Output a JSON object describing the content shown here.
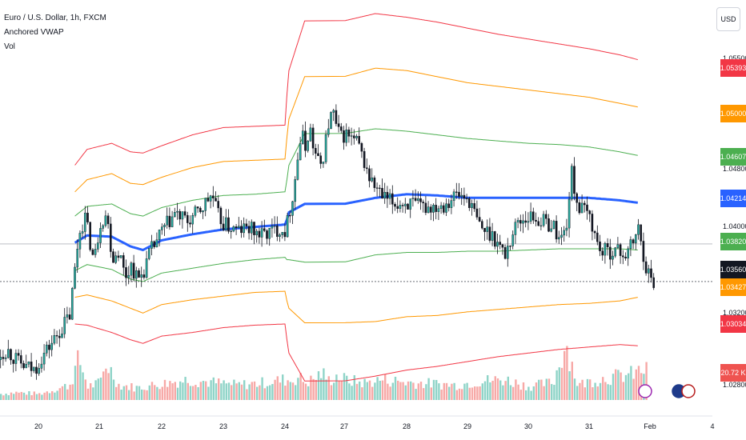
{
  "header": {
    "symbol_line": "Euro / U.S. Dollar, 1h, FXCM",
    "indicator_1": "Anchored VWAP",
    "indicator_2": "Vol"
  },
  "currency_button": "USD",
  "colors": {
    "up": "#26a69a",
    "down": "#ef5350",
    "vwap": "#2962ff",
    "band1": "#4caf50",
    "band2": "#ff9800",
    "band3": "#f23645",
    "vol_up": "#8fd4c8",
    "vol_down": "#f7a9a7"
  },
  "price_axis": {
    "ticks": [
      "1.05500",
      "1.04800",
      "1.04400",
      "1.04000",
      "1.03600",
      "1.03200",
      "1.02800"
    ],
    "tags": [
      {
        "text": "1.05393",
        "color": "#f23645"
      },
      {
        "text": "1.05000",
        "color": "#ff9800"
      },
      {
        "text": "1.04607",
        "color": "#4caf50"
      },
      {
        "text": "1.04214",
        "color": "#2962ff"
      },
      {
        "text": "1.03820",
        "color": "#4caf50"
      },
      {
        "text": "1.03560",
        "color": "#131722"
      },
      {
        "text": "1.03427",
        "color": "#ff9800"
      },
      {
        "text": "1.03034",
        "color": "#f23645"
      },
      {
        "text": "20.72 K",
        "color": "#ef5350"
      }
    ]
  },
  "time_axis": [
    "20",
    "21",
    "22",
    "23",
    "24",
    "27",
    "28",
    "29",
    "30",
    "31",
    "Feb",
    "4"
  ],
  "chart_data": {
    "type": "candlestick",
    "title": "Euro / U.S. Dollar, 1h, FXCM",
    "series_names": [
      "Anchored VWAP",
      "Vol"
    ],
    "ylim": [
      1.0255,
      1.0575
    ],
    "last_price": 1.0356,
    "vwap_series": {
      "vwap": [
        [
          20.6,
          1.0388
        ],
        [
          20.8,
          1.0394
        ],
        [
          21.2,
          1.0393
        ],
        [
          21.5,
          1.0385
        ],
        [
          21.7,
          1.0382
        ],
        [
          22,
          1.039
        ],
        [
          22.5,
          1.0395
        ],
        [
          23,
          1.0399
        ],
        [
          23.5,
          1.0401
        ],
        [
          24,
          1.0403
        ],
        [
          24.3,
          1.0407
        ],
        [
          24.6,
          1.0413
        ],
        [
          27,
          1.042
        ],
        [
          27.5,
          1.0425
        ],
        [
          28,
          1.0428
        ],
        [
          28.5,
          1.0427
        ],
        [
          29,
          1.0425
        ],
        [
          29.5,
          1.0425
        ],
        [
          30,
          1.0425
        ],
        [
          30.5,
          1.0425
        ],
        [
          31,
          1.0425
        ],
        [
          31.5,
          1.0423
        ],
        [
          31.8,
          1.0421
        ]
      ],
      "upper1": [
        [
          20.6,
          1.041
        ],
        [
          20.8,
          1.0418
        ],
        [
          21.2,
          1.042
        ],
        [
          21.5,
          1.0412
        ],
        [
          21.7,
          1.041
        ],
        [
          22,
          1.0417
        ],
        [
          22.5,
          1.0423
        ],
        [
          23,
          1.0427
        ],
        [
          23.5,
          1.0428
        ],
        [
          24,
          1.043
        ],
        [
          24.3,
          1.044
        ],
        [
          24.6,
          1.0452
        ],
        [
          27,
          1.0478
        ],
        [
          27.5,
          1.0482
        ],
        [
          28,
          1.048
        ],
        [
          28.5,
          1.0477
        ],
        [
          29,
          1.0474
        ],
        [
          29.5,
          1.0472
        ],
        [
          30,
          1.047
        ],
        [
          30.5,
          1.0469
        ],
        [
          31,
          1.0467
        ],
        [
          31.5,
          1.0463
        ],
        [
          31.8,
          1.046
        ]
      ],
      "lower1": [
        [
          20.6,
          1.0365
        ],
        [
          20.8,
          1.037
        ],
        [
          21.2,
          1.0366
        ],
        [
          21.5,
          1.0358
        ],
        [
          21.7,
          1.0356
        ],
        [
          22,
          1.0363
        ],
        [
          22.5,
          1.0367
        ],
        [
          23,
          1.0371
        ],
        [
          23.5,
          1.0374
        ],
        [
          24,
          1.0376
        ],
        [
          24.3,
          1.0374
        ],
        [
          24.6,
          1.0374
        ],
        [
          27,
          1.0372
        ],
        [
          27.5,
          1.0378
        ],
        [
          28,
          1.038
        ],
        [
          28.5,
          1.038
        ],
        [
          29,
          1.0381
        ],
        [
          29.5,
          1.0381
        ],
        [
          30,
          1.0382
        ],
        [
          30.5,
          1.0383
        ],
        [
          31,
          1.0383
        ],
        [
          31.5,
          1.0383
        ],
        [
          31.8,
          1.0382
        ]
      ],
      "upper2": [
        [
          20.6,
          1.043
        ],
        [
          20.8,
          1.044
        ],
        [
          21.2,
          1.0445
        ],
        [
          21.5,
          1.0437
        ],
        [
          21.7,
          1.0436
        ],
        [
          22,
          1.0442
        ],
        [
          22.5,
          1.045
        ],
        [
          23,
          1.0455
        ],
        [
          23.5,
          1.0456
        ],
        [
          24,
          1.0457
        ],
        [
          24.3,
          1.0475
        ],
        [
          24.6,
          1.049
        ],
        [
          27,
          1.0525
        ],
        [
          27.5,
          1.0532
        ],
        [
          28,
          1.053
        ],
        [
          28.5,
          1.0525
        ],
        [
          29,
          1.052
        ],
        [
          29.5,
          1.0517
        ],
        [
          30,
          1.0514
        ],
        [
          30.5,
          1.0511
        ],
        [
          31,
          1.0508
        ],
        [
          31.5,
          1.0503
        ],
        [
          31.8,
          1.05
        ]
      ],
      "lower2": [
        [
          20.6,
          1.0343
        ],
        [
          20.8,
          1.0345
        ],
        [
          21.2,
          1.034
        ],
        [
          21.5,
          1.0334
        ],
        [
          21.7,
          1.033
        ],
        [
          22,
          1.0337
        ],
        [
          22.5,
          1.0341
        ],
        [
          23,
          1.0344
        ],
        [
          23.5,
          1.0347
        ],
        [
          24,
          1.0348
        ],
        [
          24.3,
          1.034
        ],
        [
          24.6,
          1.0334
        ],
        [
          27,
          1.0322
        ],
        [
          27.5,
          1.0323
        ],
        [
          28,
          1.0327
        ],
        [
          28.5,
          1.0328
        ],
        [
          29,
          1.0331
        ],
        [
          29.5,
          1.0333
        ],
        [
          30,
          1.0335
        ],
        [
          30.5,
          1.0337
        ],
        [
          31,
          1.0338
        ],
        [
          31.5,
          1.034
        ],
        [
          31.8,
          1.0343
        ]
      ],
      "upper3": [
        [
          20.6,
          1.0452
        ],
        [
          20.8,
          1.0465
        ],
        [
          21.2,
          1.047
        ],
        [
          21.5,
          1.0463
        ],
        [
          21.7,
          1.0462
        ],
        [
          22,
          1.0468
        ],
        [
          22.5,
          1.0477
        ],
        [
          23,
          1.0483
        ],
        [
          23.5,
          1.0484
        ],
        [
          24,
          1.0485
        ],
        [
          24.3,
          1.051
        ],
        [
          24.6,
          1.053
        ],
        [
          27,
          1.0571
        ],
        [
          27.5,
          1.0577
        ],
        [
          28,
          1.0574
        ],
        [
          28.5,
          1.057
        ],
        [
          29,
          1.0565
        ],
        [
          29.5,
          1.056
        ],
        [
          30,
          1.0556
        ],
        [
          30.5,
          1.0552
        ],
        [
          31,
          1.0548
        ],
        [
          31.5,
          1.0543
        ],
        [
          31.8,
          1.0539
        ]
      ],
      "lower3": [
        [
          20.6,
          1.0321
        ],
        [
          20.8,
          1.032
        ],
        [
          21.2,
          1.0314
        ],
        [
          21.5,
          1.0308
        ],
        [
          21.7,
          1.0305
        ],
        [
          22,
          1.0311
        ],
        [
          22.5,
          1.0314
        ],
        [
          23,
          1.0318
        ],
        [
          23.5,
          1.032
        ],
        [
          24,
          1.0321
        ],
        [
          24.3,
          1.0308
        ],
        [
          24.6,
          1.0297
        ],
        [
          27,
          1.0274
        ],
        [
          27.5,
          1.0278
        ],
        [
          28,
          1.0283
        ],
        [
          28.5,
          1.0286
        ],
        [
          29,
          1.029
        ],
        [
          29.5,
          1.0294
        ],
        [
          30,
          1.0297
        ],
        [
          30.5,
          1.03
        ],
        [
          31,
          1.0302
        ],
        [
          31.5,
          1.0304
        ],
        [
          31.8,
          1.0303
        ]
      ]
    },
    "price_path": [
      [
        19.0,
        1.0292
      ],
      [
        19.3,
        1.03
      ],
      [
        19.6,
        1.0287
      ],
      [
        19.9,
        1.0283
      ],
      [
        20.1,
        1.0298
      ],
      [
        20.3,
        1.0312
      ],
      [
        20.5,
        1.0328
      ],
      [
        20.65,
        1.0395
      ],
      [
        20.75,
        1.041
      ],
      [
        20.9,
        1.0372
      ],
      [
        21.0,
        1.0405
      ],
      [
        21.1,
        1.0412
      ],
      [
        21.2,
        1.0375
      ],
      [
        21.3,
        1.0382
      ],
      [
        21.4,
        1.036
      ],
      [
        21.5,
        1.037
      ],
      [
        21.6,
        1.0357
      ],
      [
        21.7,
        1.0365
      ],
      [
        21.8,
        1.038
      ],
      [
        22.0,
        1.0398
      ],
      [
        22.2,
        1.0412
      ],
      [
        22.4,
        1.0405
      ],
      [
        22.6,
        1.0414
      ],
      [
        22.8,
        1.0428
      ],
      [
        22.9,
        1.041
      ],
      [
        23.0,
        1.0403
      ],
      [
        23.2,
        1.0398
      ],
      [
        23.4,
        1.04
      ],
      [
        23.6,
        1.0394
      ],
      [
        23.8,
        1.0398
      ],
      [
        23.9,
        1.04
      ],
      [
        24.0,
        1.0398
      ],
      [
        24.2,
        1.0415
      ],
      [
        24.4,
        1.0432
      ],
      [
        24.6,
        1.0458
      ],
      [
        24.8,
        1.0478
      ],
      [
        25.0,
        1.0465
      ],
      [
        25.2,
        1.0485
      ],
      [
        25.4,
        1.0466
      ],
      [
        25.6,
        1.0455
      ],
      [
        25.8,
        1.0452
      ],
      [
        26.0,
        1.047
      ],
      [
        26.2,
        1.049
      ],
      [
        26.4,
        1.0495
      ],
      [
        26.6,
        1.048
      ],
      [
        26.8,
        1.0475
      ],
      [
        27.0,
        1.0478
      ],
      [
        27.2,
        1.047
      ],
      [
        27.4,
        1.044
      ],
      [
        27.6,
        1.0425
      ],
      [
        27.8,
        1.042
      ],
      [
        28.0,
        1.0421
      ],
      [
        28.2,
        1.0417
      ],
      [
        28.4,
        1.0418
      ],
      [
        28.6,
        1.042
      ],
      [
        28.8,
        1.0428
      ],
      [
        29.0,
        1.0424
      ],
      [
        29.2,
        1.04
      ],
      [
        29.4,
        1.0395
      ],
      [
        29.6,
        1.0378
      ],
      [
        29.8,
        1.0405
      ],
      [
        30.0,
        1.041
      ],
      [
        30.2,
        1.0406
      ],
      [
        30.4,
        1.0402
      ],
      [
        30.5,
        1.039
      ],
      [
        30.6,
        1.0398
      ],
      [
        30.7,
        1.0445
      ],
      [
        30.8,
        1.0418
      ],
      [
        31.0,
        1.041
      ],
      [
        31.1,
        1.039
      ],
      [
        31.2,
        1.038
      ],
      [
        31.4,
        1.0382
      ],
      [
        31.6,
        1.0378
      ],
      [
        31.7,
        1.0388
      ],
      [
        31.8,
        1.04
      ],
      [
        31.9,
        1.0372
      ],
      [
        32.0,
        1.0357
      ],
      [
        32.05,
        1.0356
      ]
    ],
    "volume_path": [
      [
        19.0,
        8
      ],
      [
        19.5,
        11
      ],
      [
        20.0,
        9
      ],
      [
        20.5,
        22
      ],
      [
        20.65,
        60
      ],
      [
        20.8,
        20
      ],
      [
        21.0,
        25
      ],
      [
        21.1,
        55
      ],
      [
        21.3,
        22
      ],
      [
        21.6,
        18
      ],
      [
        22.0,
        24
      ],
      [
        22.4,
        30
      ],
      [
        22.8,
        26
      ],
      [
        23.2,
        22
      ],
      [
        23.6,
        25
      ],
      [
        24.0,
        30
      ],
      [
        24.3,
        28
      ],
      [
        24.6,
        34
      ],
      [
        25.0,
        26
      ],
      [
        25.4,
        30
      ],
      [
        25.8,
        40
      ],
      [
        26.2,
        28
      ],
      [
        26.5,
        36
      ],
      [
        27.0,
        30
      ],
      [
        27.3,
        25
      ],
      [
        27.6,
        30
      ],
      [
        28.0,
        26
      ],
      [
        28.4,
        24
      ],
      [
        28.8,
        22
      ],
      [
        29.2,
        28
      ],
      [
        29.6,
        30
      ],
      [
        30.0,
        20
      ],
      [
        30.4,
        26
      ],
      [
        30.6,
        85
      ],
      [
        30.8,
        22
      ],
      [
        31.1,
        30
      ],
      [
        31.4,
        34
      ],
      [
        31.7,
        38
      ],
      [
        31.9,
        45
      ],
      [
        32.05,
        30
      ]
    ],
    "event_icons": [
      "lightning-icon",
      "eu-flag-icon",
      "us-flag-icon"
    ]
  }
}
